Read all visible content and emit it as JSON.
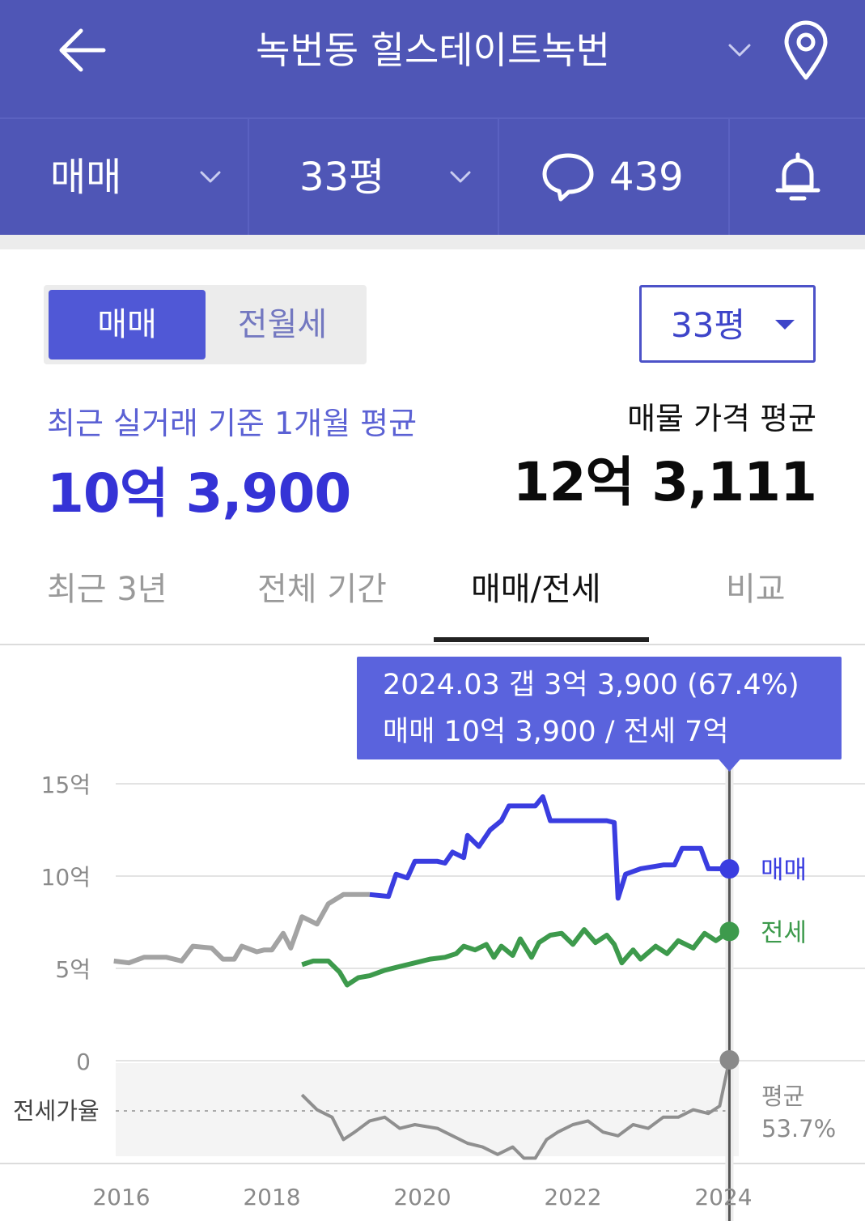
{
  "header": {
    "title": "녹번동 힐스테이트녹번",
    "icons": {
      "back": "arrow-left-icon",
      "dropdown": "chevron-down-icon",
      "location": "map-pin-icon"
    }
  },
  "filters": {
    "deal_type": "매매",
    "size": "33평",
    "comment_count": "439",
    "icons": {
      "comments": "speech-bubble-icon",
      "alerts": "bell-icon"
    }
  },
  "segment": {
    "active": "매매",
    "inactive": "전월세"
  },
  "size_select": {
    "value": "33평"
  },
  "summary": {
    "recent_label": "최근 실거래 기준 1개월 평균",
    "recent_value": "10억 3,900",
    "listing_label": "매물 가격 평균",
    "listing_value": "12억 3,111"
  },
  "tabs": [
    {
      "label": "최근 3년",
      "active": false
    },
    {
      "label": "전체 기간",
      "active": false
    },
    {
      "label": "매매/전세",
      "active": true
    },
    {
      "label": "비교",
      "active": false
    }
  ],
  "tooltip": {
    "line1": "2024.03  갭 3억 3,900 (67.4%)",
    "line2": "매매 10억 3,900 / 전세 7억"
  },
  "colors": {
    "header_bg": "#4f56b6",
    "accent": "#3d44c9",
    "sale": "#3a3de0",
    "sale_prelaunch": "#a3a3a3",
    "jeonse": "#3d9a4c",
    "ratio": "#8f8f8f",
    "tooltip_bg": "#5a63dd"
  },
  "chart_data": {
    "type": "line",
    "x_ticks": [
      "2016",
      "2018",
      "2020",
      "2022",
      "2024"
    ],
    "y_ticks": [
      "0",
      "5억",
      "10억",
      "15억"
    ],
    "ylim": [
      0,
      15
    ],
    "y_unit": "억",
    "series": [
      {
        "name": "매매",
        "points": [
          [
            2015.9,
            5.4
          ],
          [
            2016.1,
            5.3
          ],
          [
            2016.3,
            5.6
          ],
          [
            2016.6,
            5.6
          ],
          [
            2016.8,
            5.4
          ],
          [
            2016.95,
            6.2
          ],
          [
            2017.2,
            6.1
          ],
          [
            2017.35,
            5.5
          ],
          [
            2017.5,
            5.5
          ],
          [
            2017.6,
            6.2
          ],
          [
            2017.8,
            5.9
          ],
          [
            2017.9,
            6.0
          ],
          [
            2018.0,
            6.0
          ],
          [
            2018.15,
            6.9
          ],
          [
            2018.25,
            6.1
          ],
          [
            2018.4,
            7.8
          ],
          [
            2018.6,
            7.4
          ],
          [
            2018.75,
            8.5
          ],
          [
            2018.95,
            9.0
          ],
          [
            2019.2,
            9.0
          ],
          [
            2019.3,
            9.0
          ],
          [
            2019.55,
            8.9
          ],
          [
            2019.65,
            10.1
          ],
          [
            2019.8,
            9.9
          ],
          [
            2019.9,
            10.8
          ],
          [
            2020.2,
            10.8
          ],
          [
            2020.3,
            10.7
          ],
          [
            2020.4,
            11.3
          ],
          [
            2020.55,
            11.0
          ],
          [
            2020.6,
            12.2
          ],
          [
            2020.75,
            11.6
          ],
          [
            2020.9,
            12.5
          ],
          [
            2021.05,
            13.0
          ],
          [
            2021.15,
            13.8
          ],
          [
            2021.5,
            13.8
          ],
          [
            2021.6,
            14.3
          ],
          [
            2021.7,
            13.0
          ],
          [
            2022.0,
            13.0
          ],
          [
            2022.45,
            13.0
          ],
          [
            2022.55,
            12.9
          ],
          [
            2022.6,
            8.8
          ],
          [
            2022.7,
            10.1
          ],
          [
            2022.9,
            10.4
          ],
          [
            2023.2,
            10.6
          ],
          [
            2023.35,
            10.6
          ],
          [
            2023.45,
            11.5
          ],
          [
            2023.7,
            11.5
          ],
          [
            2023.8,
            10.4
          ],
          [
            2024.08,
            10.39
          ]
        ]
      },
      {
        "name": "전세",
        "points": [
          [
            2018.4,
            5.2
          ],
          [
            2018.55,
            5.4
          ],
          [
            2018.75,
            5.4
          ],
          [
            2018.9,
            4.8
          ],
          [
            2019.0,
            4.1
          ],
          [
            2019.15,
            4.5
          ],
          [
            2019.3,
            4.6
          ],
          [
            2019.5,
            4.9
          ],
          [
            2019.7,
            5.1
          ],
          [
            2019.9,
            5.3
          ],
          [
            2020.1,
            5.5
          ],
          [
            2020.3,
            5.6
          ],
          [
            2020.45,
            5.8
          ],
          [
            2020.55,
            6.2
          ],
          [
            2020.7,
            6.0
          ],
          [
            2020.85,
            6.3
          ],
          [
            2020.95,
            5.6
          ],
          [
            2021.05,
            6.2
          ],
          [
            2021.2,
            5.7
          ],
          [
            2021.3,
            6.6
          ],
          [
            2021.45,
            5.6
          ],
          [
            2021.55,
            6.4
          ],
          [
            2021.7,
            6.8
          ],
          [
            2021.85,
            6.9
          ],
          [
            2022.0,
            6.3
          ],
          [
            2022.15,
            7.1
          ],
          [
            2022.3,
            6.4
          ],
          [
            2022.45,
            6.8
          ],
          [
            2022.55,
            6.3
          ],
          [
            2022.65,
            5.3
          ],
          [
            2022.8,
            6.0
          ],
          [
            2022.9,
            5.5
          ],
          [
            2023.1,
            6.2
          ],
          [
            2023.25,
            5.8
          ],
          [
            2023.4,
            6.5
          ],
          [
            2023.6,
            6.1
          ],
          [
            2023.75,
            6.9
          ],
          [
            2023.9,
            6.5
          ],
          [
            2024.08,
            7.0
          ]
        ]
      },
      {
        "name": "전세가율",
        "unit": "%",
        "average": 53.7,
        "average_label": "평균",
        "average_value_label": "53.7%",
        "points": [
          [
            2018.4,
            58
          ],
          [
            2018.6,
            54
          ],
          [
            2018.8,
            52
          ],
          [
            2018.95,
            46
          ],
          [
            2019.1,
            48
          ],
          [
            2019.3,
            51
          ],
          [
            2019.5,
            52
          ],
          [
            2019.7,
            49
          ],
          [
            2019.9,
            50
          ],
          [
            2020.2,
            49
          ],
          [
            2020.4,
            47
          ],
          [
            2020.6,
            45
          ],
          [
            2020.8,
            44
          ],
          [
            2021.0,
            42
          ],
          [
            2021.2,
            44
          ],
          [
            2021.35,
            41
          ],
          [
            2021.5,
            41
          ],
          [
            2021.65,
            46
          ],
          [
            2021.8,
            48
          ],
          [
            2022.0,
            50
          ],
          [
            2022.2,
            51
          ],
          [
            2022.4,
            48
          ],
          [
            2022.6,
            47
          ],
          [
            2022.8,
            50
          ],
          [
            2023.0,
            49
          ],
          [
            2023.2,
            52
          ],
          [
            2023.4,
            52
          ],
          [
            2023.6,
            54
          ],
          [
            2023.8,
            53
          ],
          [
            2023.95,
            55
          ],
          [
            2024.08,
            67.4
          ]
        ]
      }
    ],
    "ratio_label": "전세가율",
    "end_labels": [
      "매매",
      "전세"
    ],
    "marker_x": 2024.08
  }
}
